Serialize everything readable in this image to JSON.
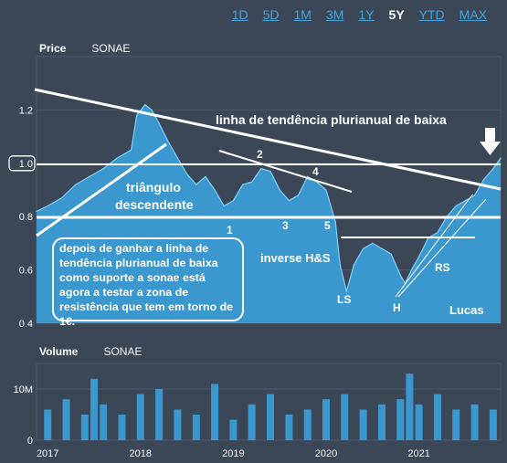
{
  "range_buttons": [
    {
      "label": "1D",
      "active": false
    },
    {
      "label": "5D",
      "active": false
    },
    {
      "label": "1M",
      "active": false
    },
    {
      "label": "3M",
      "active": false
    },
    {
      "label": "1Y",
      "active": false
    },
    {
      "label": "5Y",
      "active": true
    },
    {
      "label": "YTD",
      "active": false
    },
    {
      "label": "MAX",
      "active": false
    }
  ],
  "price_panel": {
    "title": "Price",
    "symbol": "SONAE"
  },
  "volume_panel": {
    "title": "Volume",
    "symbol": "SONAE"
  },
  "annotations": {
    "trendline_label": "linha de tendência plurianual de baixa",
    "triangle_label_1": "triângulo",
    "triangle_label_2": "descendente",
    "pattern_label": "inverse H&S",
    "ls": "LS",
    "h": "H",
    "rs": "RS",
    "n1": "1",
    "n2": "2",
    "n3": "3",
    "n4": "4",
    "n5": "5",
    "author": "Lucas",
    "note": "depois de ganhar a linha de tendência plurianual de baixa como suporte a sonae está agora a testar a zona de resistência que tem em torno de 1€."
  },
  "colors": {
    "background": "#3b4657",
    "area": "#3a98cf",
    "line": "#7fd3ff",
    "accent": "#4aa3d8"
  },
  "chart_data": [
    {
      "type": "area",
      "title": "Price",
      "series": [
        {
          "name": "SONAE"
        }
      ],
      "ylim": [
        0.4,
        1.4
      ],
      "yticks": [
        0.4,
        0.6,
        0.8,
        1.0,
        1.2
      ],
      "ytick_labels": [
        "0.4",
        "0.6",
        "0.8",
        "1.0",
        "1.2"
      ],
      "x": [
        2016.88,
        2017.0,
        2017.15,
        2017.3,
        2017.45,
        2017.6,
        2017.75,
        2017.9,
        2017.96,
        2018.05,
        2018.12,
        2018.2,
        2018.3,
        2018.4,
        2018.5,
        2018.6,
        2018.7,
        2018.8,
        2018.9,
        2019.0,
        2019.1,
        2019.2,
        2019.3,
        2019.4,
        2019.5,
        2019.6,
        2019.7,
        2019.8,
        2019.9,
        2020.0,
        2020.1,
        2020.15,
        2020.22,
        2020.3,
        2020.4,
        2020.5,
        2020.6,
        2020.7,
        2020.8,
        2020.85,
        2020.92,
        2021.0,
        2021.1,
        2021.2,
        2021.3,
        2021.4,
        2021.5,
        2021.6,
        2021.7,
        2021.8,
        2021.88
      ],
      "y": [
        0.82,
        0.84,
        0.87,
        0.92,
        0.95,
        0.98,
        1.02,
        1.05,
        1.18,
        1.22,
        1.2,
        1.15,
        1.08,
        1.02,
        0.96,
        0.92,
        0.95,
        0.9,
        0.84,
        0.86,
        0.92,
        0.93,
        0.98,
        0.97,
        0.9,
        0.86,
        0.88,
        0.95,
        0.93,
        0.9,
        0.78,
        0.62,
        0.52,
        0.62,
        0.68,
        0.7,
        0.68,
        0.66,
        0.58,
        0.55,
        0.6,
        0.65,
        0.72,
        0.74,
        0.8,
        0.84,
        0.86,
        0.88,
        0.94,
        0.98,
        1.02
      ]
    },
    {
      "type": "bar",
      "title": "Volume",
      "series": [
        {
          "name": "SONAE"
        }
      ],
      "ylim": [
        0,
        15
      ],
      "yticks": [
        0,
        10
      ],
      "ytick_labels": [
        "0",
        "10M"
      ],
      "x_ticks": [
        "2017",
        "2018",
        "2019",
        "2020",
        "2021"
      ],
      "x": [
        2017.0,
        2017.2,
        2017.4,
        2017.5,
        2017.6,
        2017.8,
        2018.0,
        2018.2,
        2018.4,
        2018.6,
        2018.8,
        2019.0,
        2019.2,
        2019.4,
        2019.6,
        2019.8,
        2020.0,
        2020.2,
        2020.4,
        2020.6,
        2020.8,
        2020.9,
        2021.0,
        2021.2,
        2021.4,
        2021.6,
        2021.8
      ],
      "values": [
        6,
        8,
        5,
        12,
        7,
        5,
        9,
        10,
        6,
        5,
        11,
        4,
        7,
        9,
        5,
        6,
        8,
        9,
        6,
        7,
        8,
        13,
        7,
        9,
        6,
        7,
        6
      ]
    }
  ]
}
